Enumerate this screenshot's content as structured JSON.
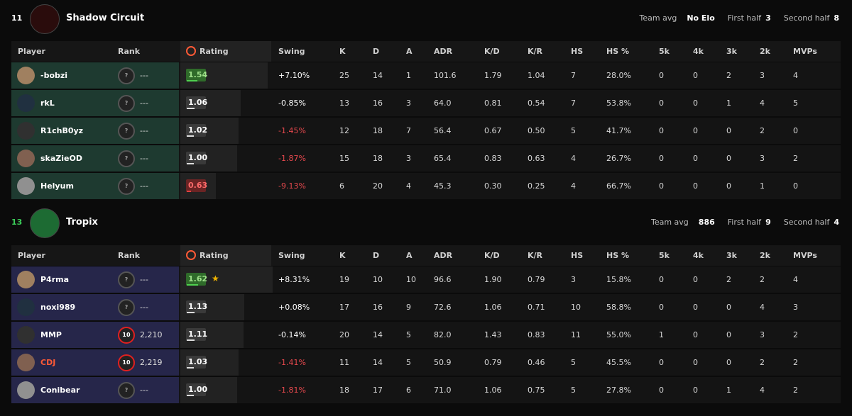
{
  "teams": [
    {
      "score": "11",
      "name": "Shadow Circuit",
      "team_avg_label": "Team avg",
      "team_avg": "No Elo",
      "first_half_label": "First half",
      "first_half": "3",
      "second_half_label": "Second half",
      "second_half": "8",
      "row_color": "#1e3a30",
      "columns": [
        "Player",
        "Rank",
        "Rating",
        "Swing",
        "K",
        "D",
        "A",
        "ADR",
        "K/D",
        "K/R",
        "HS",
        "HS %",
        "5k",
        "4k",
        "3k",
        "2k",
        "MVPs"
      ],
      "players": [
        {
          "name": "-bobzi",
          "name_color": "#ffffff",
          "rank_icon": "?",
          "rank": "---",
          "rating": "1.54",
          "rating_color": "#2f6b2a",
          "star": false,
          "swing": "+7.10%",
          "swing_color": "#ffffff",
          "stats": [
            "25",
            "14",
            "1",
            "101.6",
            "1.79",
            "1.04",
            "7",
            "28.0%",
            "0",
            "0",
            "2",
            "3",
            "4"
          ]
        },
        {
          "name": "rkL",
          "name_color": "#ffffff",
          "rank_icon": "?",
          "rank": "---",
          "rating": "1.06",
          "rating_color": "#3a3a3a",
          "star": false,
          "swing": "-0.85%",
          "swing_color": "#ffffff",
          "stats": [
            "13",
            "16",
            "3",
            "64.0",
            "0.81",
            "0.54",
            "7",
            "53.8%",
            "0",
            "0",
            "1",
            "4",
            "5"
          ]
        },
        {
          "name": "R1chB0yz",
          "name_color": "#ffffff",
          "rank_icon": "?",
          "rank": "---",
          "rating": "1.02",
          "rating_color": "#3a3a3a",
          "star": false,
          "swing": "-1.45%",
          "swing_color": "#e5484d",
          "stats": [
            "12",
            "18",
            "7",
            "56.4",
            "0.67",
            "0.50",
            "5",
            "41.7%",
            "0",
            "0",
            "0",
            "2",
            "0"
          ]
        },
        {
          "name": "skaZieOD",
          "name_color": "#ffffff",
          "rank_icon": "?",
          "rank": "---",
          "rating": "1.00",
          "rating_color": "#3a3a3a",
          "star": false,
          "swing": "-1.87%",
          "swing_color": "#e5484d",
          "stats": [
            "15",
            "18",
            "3",
            "65.4",
            "0.83",
            "0.63",
            "4",
            "26.7%",
            "0",
            "0",
            "0",
            "3",
            "2"
          ]
        },
        {
          "name": "Helyum",
          "name_color": "#ffffff",
          "rank_icon": "?",
          "rank": "---",
          "rating": "0.63",
          "rating_color": "#6b2424",
          "star": false,
          "swing": "-9.13%",
          "swing_color": "#e5484d",
          "stats": [
            "6",
            "20",
            "4",
            "45.3",
            "0.30",
            "0.25",
            "4",
            "66.7%",
            "0",
            "0",
            "0",
            "1",
            "0"
          ]
        }
      ]
    },
    {
      "score": "13",
      "name": "Tropix",
      "team_avg_label": "Team avg",
      "team_avg": "886",
      "first_half_label": "First half",
      "first_half": "9",
      "second_half_label": "Second half",
      "second_half": "4",
      "row_color": "#26264a",
      "columns": [
        "Player",
        "Rank",
        "Rating",
        "Swing",
        "K",
        "D",
        "A",
        "ADR",
        "K/D",
        "K/R",
        "HS",
        "HS %",
        "5k",
        "4k",
        "3k",
        "2k",
        "MVPs"
      ],
      "players": [
        {
          "name": "P4rma",
          "name_color": "#ffffff",
          "rank_icon": "?",
          "rank": "---",
          "rating": "1.62",
          "rating_color": "#2f6b2a",
          "star": true,
          "swing": "+8.31%",
          "swing_color": "#ffffff",
          "stats": [
            "19",
            "10",
            "10",
            "96.6",
            "1.90",
            "0.79",
            "3",
            "15.8%",
            "0",
            "0",
            "2",
            "2",
            "4"
          ]
        },
        {
          "name": "noxi989",
          "name_color": "#ffffff",
          "rank_icon": "?",
          "rank": "---",
          "rating": "1.13",
          "rating_color": "#3a3a3a",
          "star": false,
          "swing": "+0.08%",
          "swing_color": "#ffffff",
          "stats": [
            "17",
            "16",
            "9",
            "72.6",
            "1.06",
            "0.71",
            "10",
            "58.8%",
            "0",
            "0",
            "0",
            "4",
            "3"
          ]
        },
        {
          "name": "MMP",
          "name_color": "#ffffff",
          "rank_icon": "10",
          "rank": "2,210",
          "rating": "1.11",
          "rating_color": "#3a3a3a",
          "star": false,
          "swing": "-0.14%",
          "swing_color": "#ffffff",
          "stats": [
            "20",
            "14",
            "5",
            "82.0",
            "1.43",
            "0.83",
            "11",
            "55.0%",
            "1",
            "0",
            "0",
            "3",
            "2"
          ]
        },
        {
          "name": "CDJ",
          "name_color": "#ff5a36",
          "rank_icon": "10",
          "rank": "2,219",
          "rating": "1.03",
          "rating_color": "#3a3a3a",
          "star": false,
          "swing": "-1.41%",
          "swing_color": "#e5484d",
          "stats": [
            "11",
            "14",
            "5",
            "50.9",
            "0.79",
            "0.46",
            "5",
            "45.5%",
            "0",
            "0",
            "0",
            "2",
            "2"
          ]
        },
        {
          "name": "Conibear",
          "name_color": "#ffffff",
          "rank_icon": "?",
          "rank": "---",
          "rating": "1.00",
          "rating_color": "#3a3a3a",
          "star": false,
          "swing": "-1.81%",
          "swing_color": "#e5484d",
          "stats": [
            "18",
            "17",
            "6",
            "71.0",
            "1.06",
            "0.75",
            "5",
            "27.8%",
            "0",
            "0",
            "1",
            "4",
            "2"
          ]
        }
      ]
    }
  ]
}
